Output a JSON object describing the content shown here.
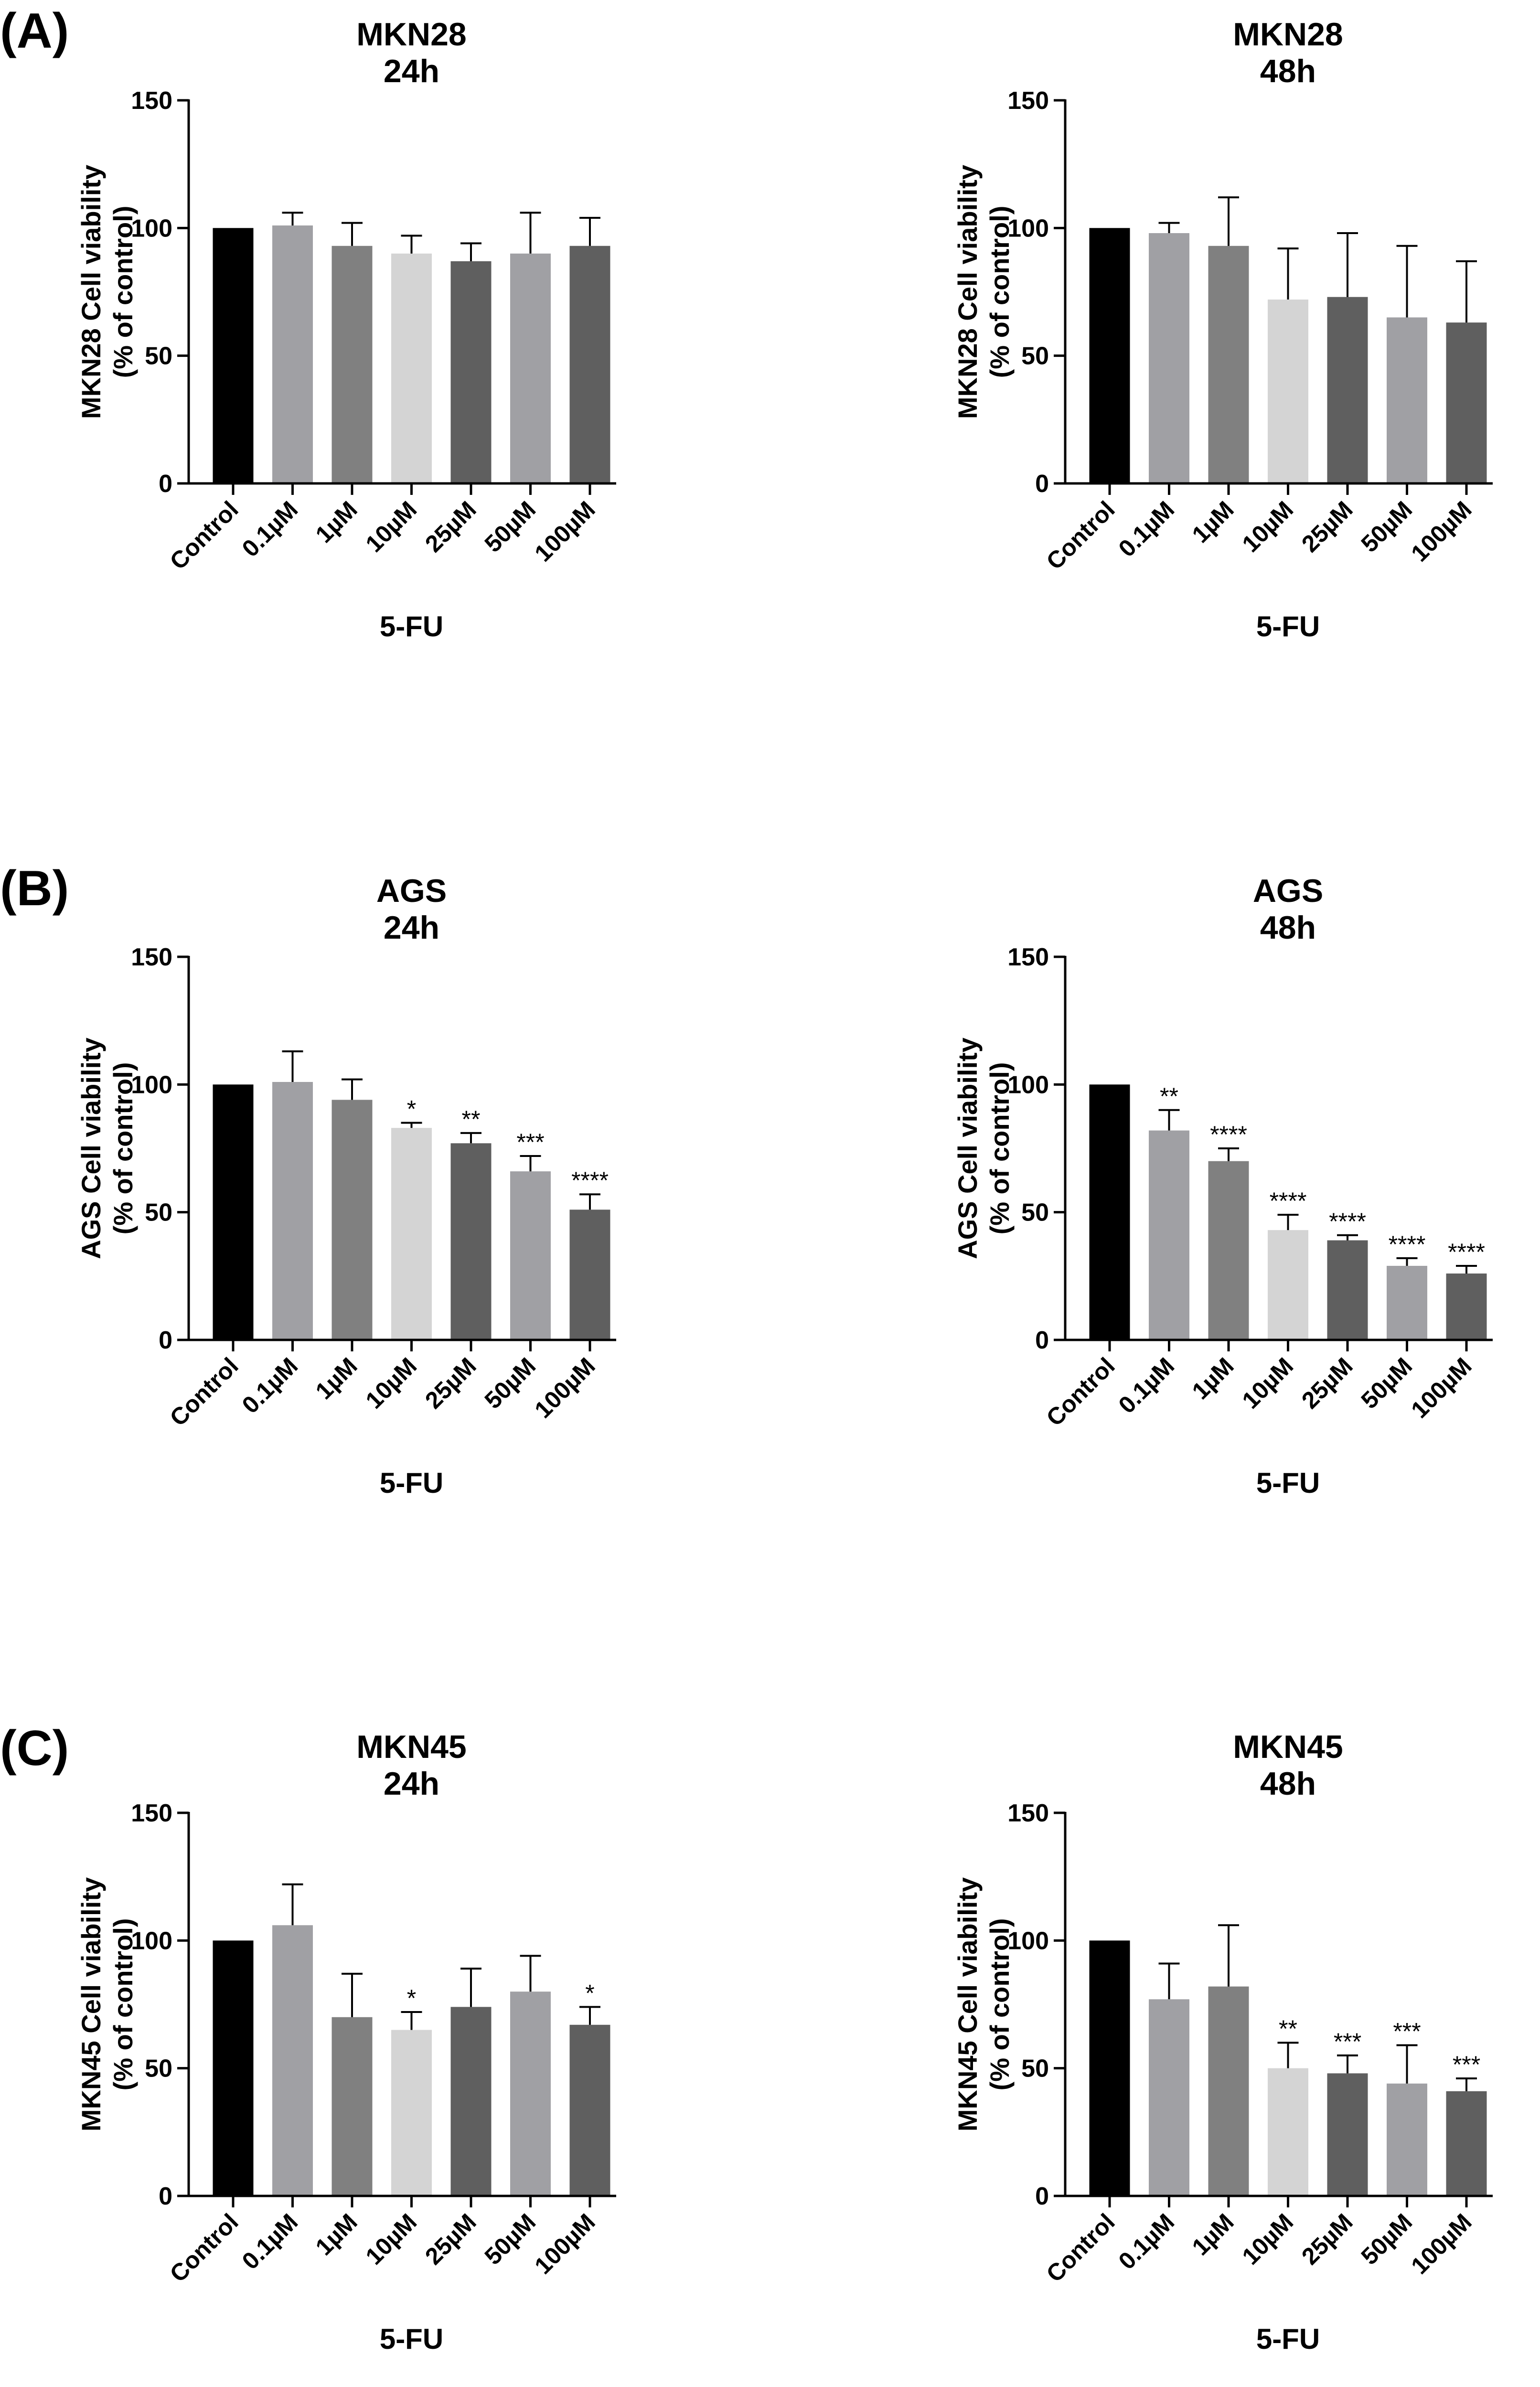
{
  "panels": [
    {
      "letter": "(A)"
    },
    {
      "letter": "(B)"
    },
    {
      "letter": "(C)"
    }
  ],
  "chart_data": [
    {
      "type": "bar",
      "panel": "(A)",
      "title": [
        "MKN28",
        "24h"
      ],
      "ylabel": [
        "MKN28 Cell viability",
        "(% of control)"
      ],
      "xlabel": "5-FU",
      "categories": [
        "Control",
        "0.1µM",
        "1µM",
        "10µM",
        "25µM",
        "50µM",
        "100µM"
      ],
      "values": [
        100,
        101,
        93,
        90,
        87,
        90,
        93
      ],
      "errors": [
        0,
        5,
        9,
        7,
        7,
        16,
        11
      ],
      "significance": [
        "",
        "",
        "",
        "",
        "",
        "",
        ""
      ],
      "colors": [
        "#000000",
        "#a0a0a4",
        "#808080",
        "#d4d4d4",
        "#5f5f5f",
        "#a0a0a4",
        "#5f5f5f"
      ],
      "ylim": [
        0,
        150
      ],
      "yticks": [
        0,
        50,
        100,
        150
      ]
    },
    {
      "type": "bar",
      "panel": "(A)",
      "title": [
        "MKN28",
        "48h"
      ],
      "ylabel": [
        "MKN28 Cell viability",
        "(% of control)"
      ],
      "xlabel": "5-FU",
      "categories": [
        "Control",
        "0.1µM",
        "1µM",
        "10µM",
        "25µM",
        "50µM",
        "100µM"
      ],
      "values": [
        100,
        98,
        93,
        72,
        73,
        65,
        63
      ],
      "errors": [
        0,
        4,
        19,
        20,
        25,
        28,
        24
      ],
      "significance": [
        "",
        "",
        "",
        "",
        "",
        "",
        ""
      ],
      "colors": [
        "#000000",
        "#a0a0a4",
        "#808080",
        "#d4d4d4",
        "#5f5f5f",
        "#a0a0a4",
        "#5f5f5f"
      ],
      "ylim": [
        0,
        150
      ],
      "yticks": [
        0,
        50,
        100,
        150
      ]
    },
    {
      "type": "bar",
      "panel": "(B)",
      "title": [
        "AGS",
        "24h"
      ],
      "ylabel": [
        "AGS Cell viability",
        "(% of control)"
      ],
      "xlabel": "5-FU",
      "categories": [
        "Control",
        "0.1µM",
        "1µM",
        "10µM",
        "25µM",
        "50µM",
        "100µM"
      ],
      "values": [
        100,
        101,
        94,
        83,
        77,
        66,
        51
      ],
      "errors": [
        0,
        12,
        8,
        2,
        4,
        6,
        6
      ],
      "significance": [
        "",
        "",
        "",
        "*",
        "**",
        "***",
        "****"
      ],
      "colors": [
        "#000000",
        "#a0a0a4",
        "#808080",
        "#d4d4d4",
        "#5f5f5f",
        "#a0a0a4",
        "#5f5f5f"
      ],
      "ylim": [
        0,
        150
      ],
      "yticks": [
        0,
        50,
        100,
        150
      ]
    },
    {
      "type": "bar",
      "panel": "(B)",
      "title": [
        "AGS",
        "48h"
      ],
      "ylabel": [
        "AGS Cell viability",
        "(% of control)"
      ],
      "xlabel": "5-FU",
      "categories": [
        "Control",
        "0.1µM",
        "1µM",
        "10µM",
        "25µM",
        "50µM",
        "100µM"
      ],
      "values": [
        100,
        82,
        70,
        43,
        39,
        29,
        26
      ],
      "errors": [
        0,
        8,
        5,
        6,
        2,
        3,
        3
      ],
      "significance": [
        "",
        "**",
        "****",
        "****",
        "****",
        "****",
        "****"
      ],
      "colors": [
        "#000000",
        "#a0a0a4",
        "#808080",
        "#d4d4d4",
        "#5f5f5f",
        "#a0a0a4",
        "#5f5f5f"
      ],
      "ylim": [
        0,
        150
      ],
      "yticks": [
        0,
        50,
        100,
        150
      ]
    },
    {
      "type": "bar",
      "panel": "(C)",
      "title": [
        "MKN45",
        "24h"
      ],
      "ylabel": [
        "MKN45 Cell viability",
        "(% of control)"
      ],
      "xlabel": "5-FU",
      "categories": [
        "Control",
        "0.1µM",
        "1µM",
        "10µM",
        "25µM",
        "50µM",
        "100µM"
      ],
      "values": [
        100,
        106,
        70,
        65,
        74,
        80,
        67
      ],
      "errors": [
        0,
        16,
        17,
        7,
        15,
        14,
        7
      ],
      "significance": [
        "",
        "",
        "",
        "*",
        "",
        "",
        "*"
      ],
      "colors": [
        "#000000",
        "#a0a0a4",
        "#808080",
        "#d4d4d4",
        "#5f5f5f",
        "#a0a0a4",
        "#5f5f5f"
      ],
      "ylim": [
        0,
        150
      ],
      "yticks": [
        0,
        50,
        100,
        150
      ]
    },
    {
      "type": "bar",
      "panel": "(C)",
      "title": [
        "MKN45",
        "48h"
      ],
      "ylabel": [
        "MKN45 Cell viability",
        "(% of control)"
      ],
      "xlabel": "5-FU",
      "categories": [
        "Control",
        "0.1µM",
        "1µM",
        "10µM",
        "25µM",
        "50µM",
        "100µM"
      ],
      "values": [
        100,
        77,
        82,
        50,
        48,
        44,
        41
      ],
      "errors": [
        0,
        14,
        24,
        10,
        7,
        15,
        5
      ],
      "significance": [
        "",
        "",
        "",
        "**",
        "***",
        "***",
        "***"
      ],
      "colors": [
        "#000000",
        "#a0a0a4",
        "#808080",
        "#d4d4d4",
        "#5f5f5f",
        "#a0a0a4",
        "#5f5f5f"
      ],
      "ylim": [
        0,
        150
      ],
      "yticks": [
        0,
        50,
        100,
        150
      ]
    }
  ]
}
